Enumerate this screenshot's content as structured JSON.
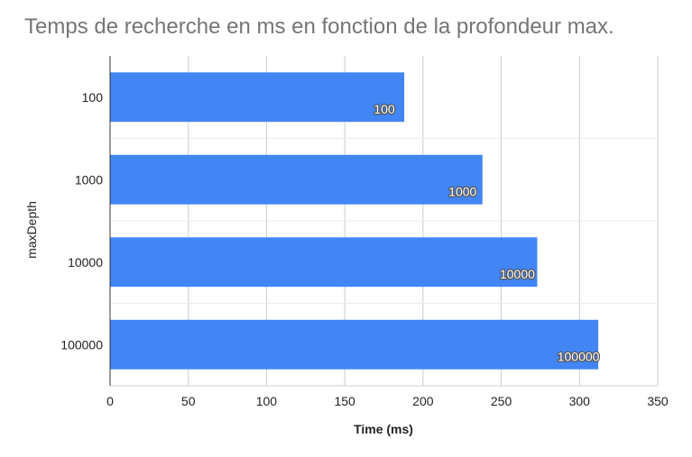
{
  "chart_data": {
    "type": "bar",
    "orientation": "horizontal",
    "title": "Temps de recherche en ms en fonction de la profondeur max.",
    "xlabel": "Time (ms)",
    "ylabel": "maxDepth",
    "categories": [
      "100",
      "1000",
      "10000",
      "100000"
    ],
    "values": [
      188,
      238,
      273,
      312
    ],
    "data_labels": [
      "100",
      "1000",
      "10000",
      "100000"
    ],
    "xlim": [
      0,
      350
    ],
    "xticks": [
      0,
      50,
      100,
      150,
      200,
      250,
      300,
      350
    ],
    "grid": true,
    "legend": "none",
    "bar_color": "#4285f4"
  }
}
